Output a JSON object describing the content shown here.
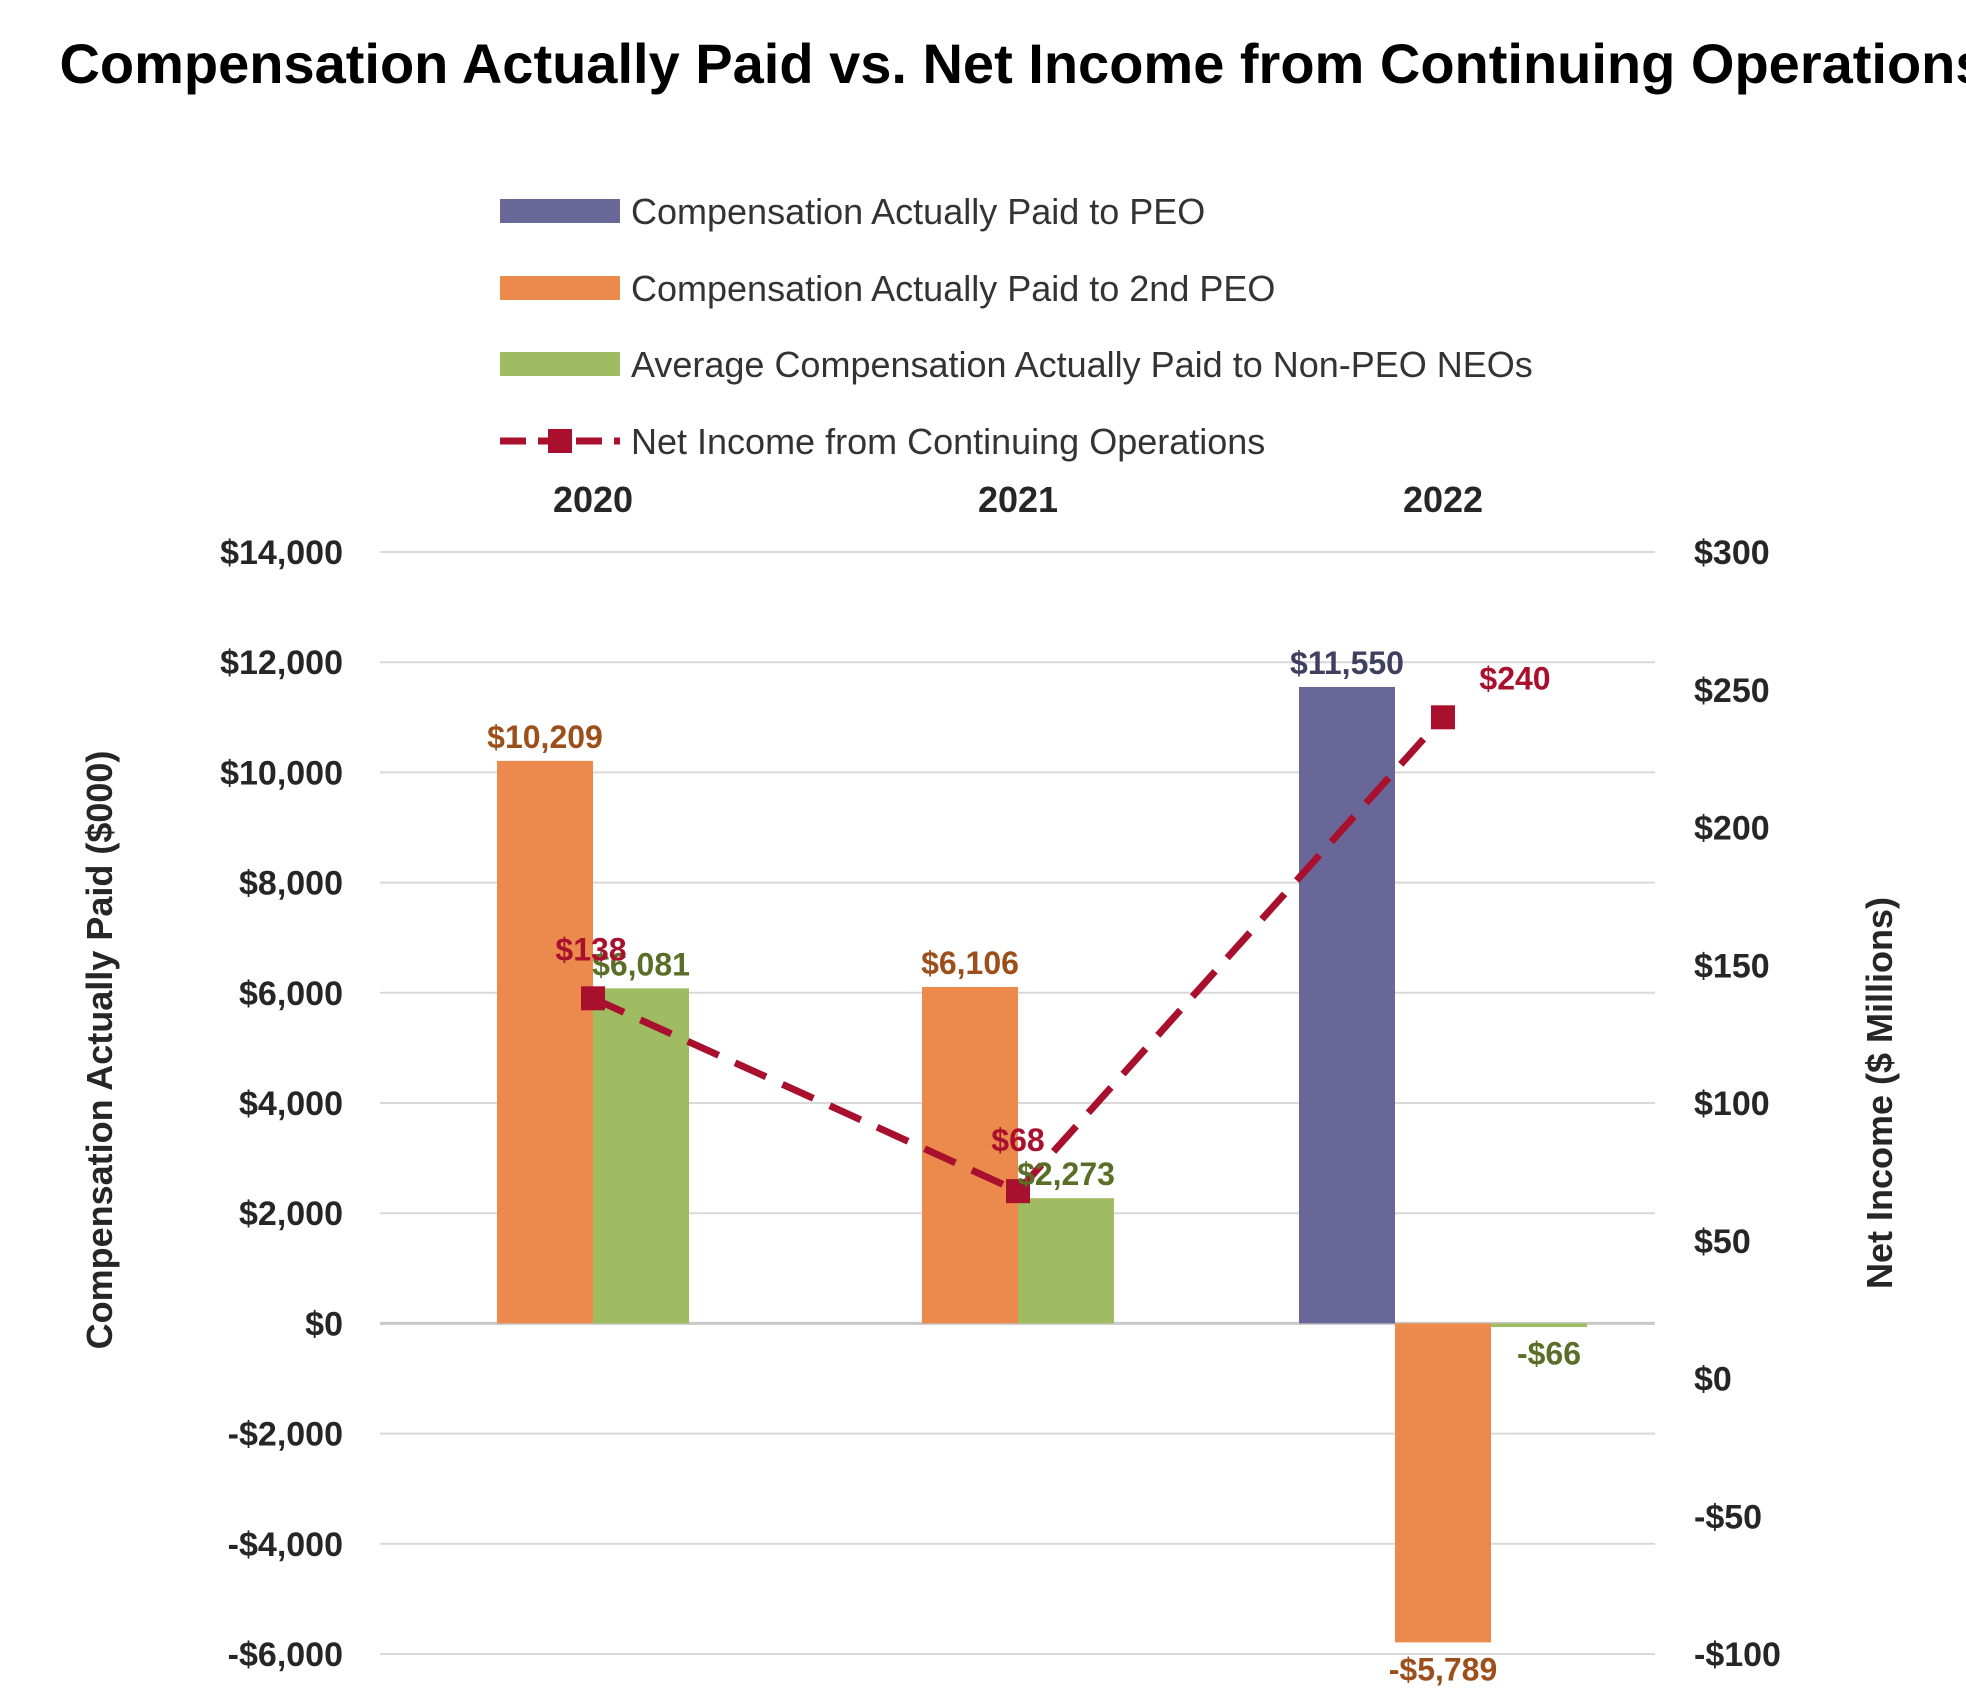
{
  "chart_data": {
    "type": "bar",
    "title": "Compensation Actually Paid vs. Net Income from Continuing Operations",
    "categories": [
      "2020",
      "2021",
      "2022"
    ],
    "series": [
      {
        "name": "Compensation Actually Paid to PEO",
        "type": "bar",
        "color": "#686798",
        "values": [
          null,
          null,
          11550
        ],
        "labels": [
          "",
          "",
          "$11,550"
        ],
        "label_color": "#3f3f5f"
      },
      {
        "name": "Compensation Actually Paid to 2nd PEO",
        "type": "bar",
        "color": "#ec8a4d",
        "values": [
          10209,
          6106,
          -5789
        ],
        "labels": [
          "$10,209",
          "$6,106",
          "-$5,789"
        ],
        "label_color": "#9c4f1a"
      },
      {
        "name": "Average Compensation Actually Paid to Non-PEO NEOs",
        "type": "bar",
        "color": "#a0bc62",
        "values": [
          6081,
          2273,
          -66
        ],
        "labels": [
          "$6,081",
          "$2,273",
          "-$66"
        ],
        "label_color": "#5a6e28"
      },
      {
        "name": "Net Income from Continuing Operations",
        "type": "line",
        "axis": "right",
        "color": "#a8102e",
        "values": [
          138,
          68,
          240
        ],
        "labels": [
          "$138",
          "$68",
          "$240"
        ],
        "label_color": "#a8102e"
      }
    ],
    "ylabel": "Compensation Actually Paid ($000)",
    "ylim": [
      -6000,
      14000
    ],
    "yticks": [
      14000,
      12000,
      10000,
      8000,
      6000,
      4000,
      2000,
      0,
      -2000,
      -4000,
      -6000
    ],
    "ytick_labels": [
      "$14,000",
      "$12,000",
      "$10,000",
      "$8,000",
      "$6,000",
      "$4,000",
      "$2,000",
      "$0",
      "-$2,000",
      "-$4,000",
      "-$6,000"
    ],
    "y2label": "Net Income ($ Millions)",
    "y2lim": [
      -100,
      300
    ],
    "y2ticks": [
      300,
      250,
      200,
      150,
      100,
      50,
      0,
      -50,
      -100
    ],
    "y2tick_labels": [
      "$300",
      "$250",
      "$200",
      "$150",
      "$100",
      "$50",
      "$0",
      "-$50",
      "-$100"
    ],
    "grid": true,
    "legend_position": "top",
    "category_axis_position": "top"
  }
}
